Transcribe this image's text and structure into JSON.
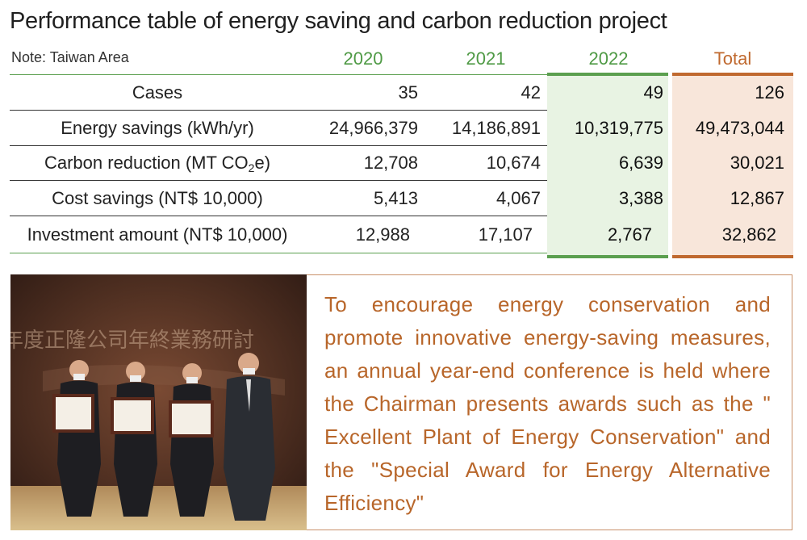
{
  "title": "Performance table of energy saving and carbon reduction project",
  "note": "Note: Taiwan Area",
  "columns": [
    "2020",
    "2021",
    "2022",
    "Total"
  ],
  "colors": {
    "green": "#5b9f4f",
    "orange": "#c0692f",
    "text_orange": "#b8662a"
  },
  "rows": [
    {
      "label": "Cases",
      "v2020": "35",
      "v2021": "42",
      "v2022": "49",
      "total": "126"
    },
    {
      "label": "Energy savings (kWh/yr)",
      "v2020": "24,966,379",
      "v2021": "14,186,891",
      "v2022": "10,319,775",
      "total": "49,473,044"
    },
    {
      "label_pre": "Carbon reduction (MT CO",
      "label_sub": "2",
      "label_post": "e)",
      "v2020": "12,708",
      "v2021": "10,674",
      "v2022": "6,639",
      "total": "30,021"
    },
    {
      "label": "Cost savings (NT$ 10,000)",
      "v2020": "5,413",
      "v2021": "4,067",
      "v2022": "3,388",
      "total": "12,867"
    },
    {
      "label": "Investment amount (NT$ 10,000)",
      "v2020": "12,988",
      "v2021": "17,107",
      "v2022": "2,767",
      "total": "32,862"
    }
  ],
  "description": "To encourage energy conservation and promote innovative energy-saving measures, an annual year-end conference is held where the Chairman presents awards such as the \" Excellent Plant of Energy Conservation\" and the \"Special Award for Energy Alternative Efficiency\"",
  "photo": {
    "banner_text": "年度正隆公司年終業務研討",
    "subject": "four men in suits, three holding award certificates, on stage"
  }
}
